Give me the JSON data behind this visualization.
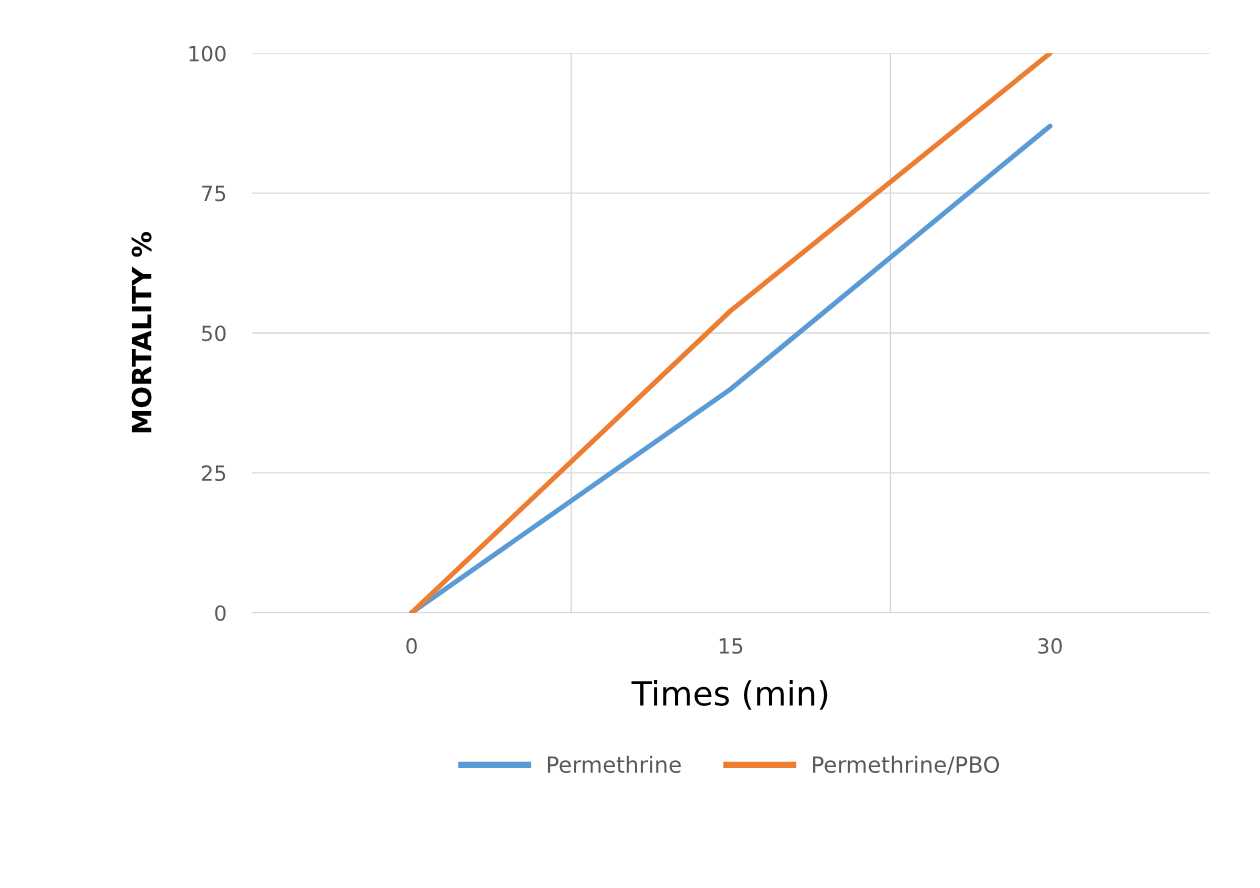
{
  "chart_data": {
    "type": "line",
    "xlabel": "Times (min)",
    "ylabel": "MORTALITY %",
    "categories": [
      "0",
      "15",
      "30"
    ],
    "series": [
      {
        "name": "Permethrine",
        "color": "#5b9bd5",
        "values": [
          0,
          40,
          87
        ]
      },
      {
        "name": "Permethrine/PBO",
        "color": "#ed7d31",
        "values": [
          0,
          54,
          100
        ]
      }
    ],
    "ylim": [
      0,
      100
    ],
    "yticks": [
      0,
      25,
      50,
      75,
      100
    ],
    "grid": true,
    "legend": "bottom",
    "marker": "none",
    "line_style": "solid"
  }
}
